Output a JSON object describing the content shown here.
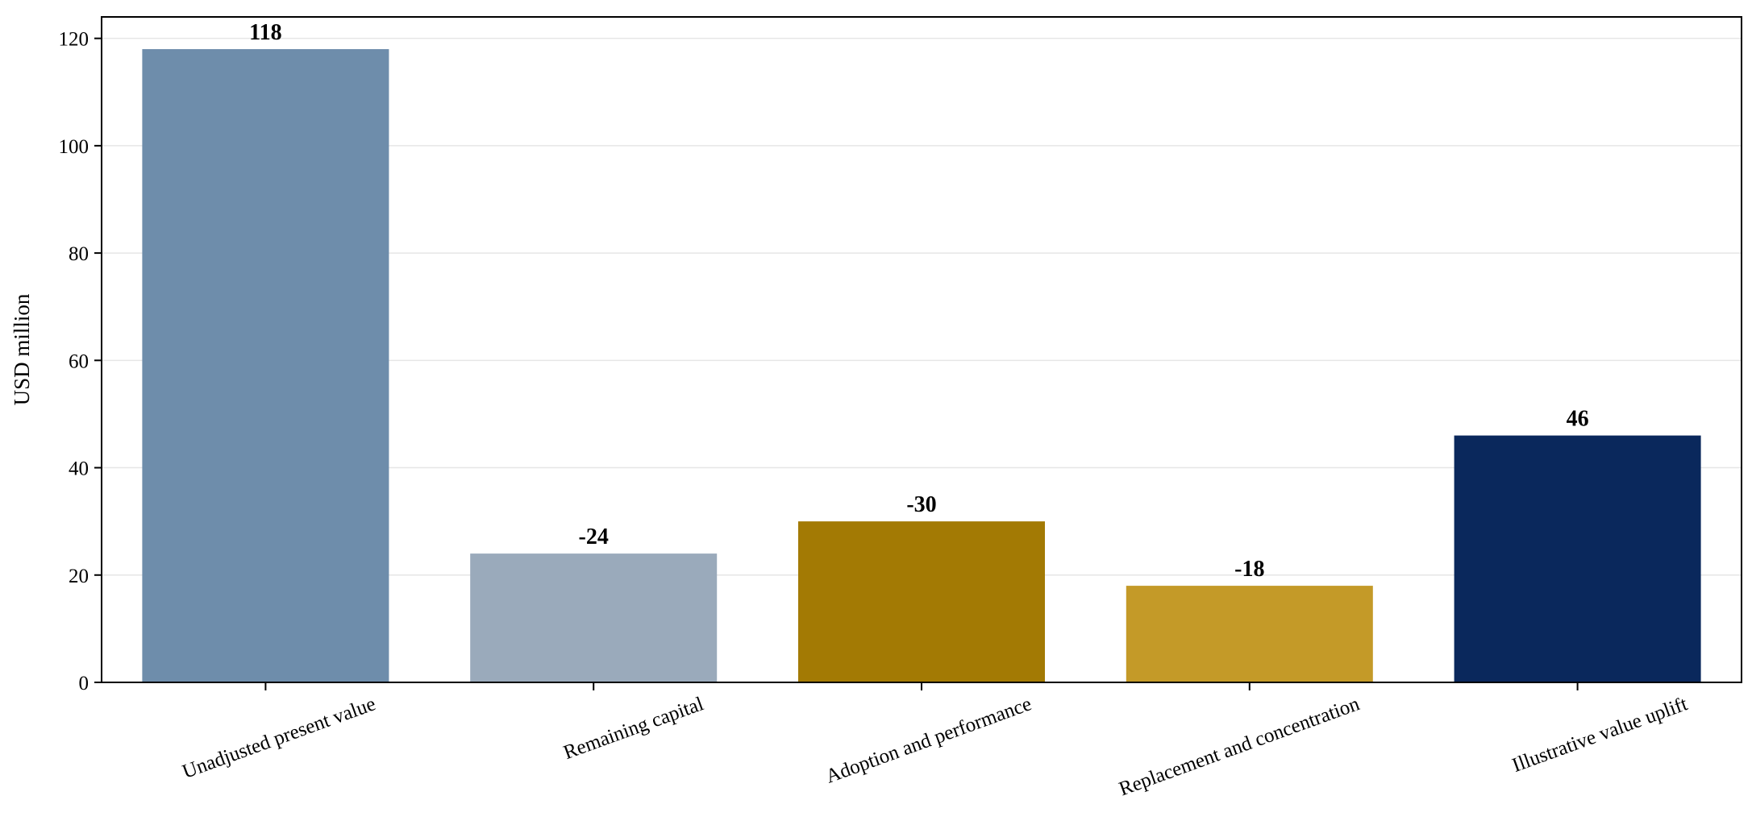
{
  "chart_data": {
    "type": "bar",
    "title": "",
    "xlabel": "",
    "ylabel": "USD million",
    "ylim": [
      0,
      124
    ],
    "yticks": [
      0,
      20,
      40,
      60,
      80,
      100,
      120
    ],
    "grid": "horizontal",
    "categories": [
      "Unadjusted present value",
      "Remaining capital",
      "Adoption and performance",
      "Replacement and concentration",
      "Illustrative value uplift"
    ],
    "values": [
      118,
      24,
      30,
      18,
      46
    ],
    "data_labels": [
      "118",
      "-24",
      "-30",
      "-18",
      "46"
    ],
    "colors": [
      "#6e8dab",
      "#9aaabb",
      "#a37a04",
      "#c49a28",
      "#0a285c"
    ]
  }
}
